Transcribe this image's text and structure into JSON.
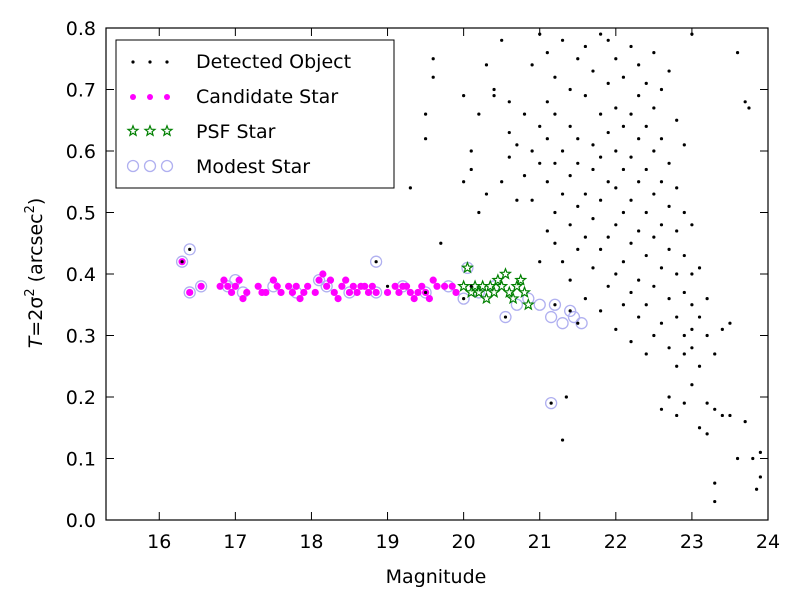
{
  "chart_data": {
    "type": "scatter",
    "xlabel": "Magnitude",
    "ylabel_main": "T",
    "ylabel_eq": "=2σ",
    "ylabel_sup": "2",
    "ylabel_unit": "(arcsec",
    "ylabel_unit_sup": "2",
    "ylabel_close": ")",
    "xlim": [
      15.3,
      24
    ],
    "ylim": [
      0.0,
      0.8
    ],
    "xticks": [
      "16",
      "17",
      "18",
      "19",
      "20",
      "21",
      "22",
      "23",
      "24"
    ],
    "yticks": [
      "0.0",
      "0.1",
      "0.2",
      "0.3",
      "0.4",
      "0.5",
      "0.6",
      "0.7",
      "0.8"
    ],
    "grid": false,
    "legend_position": "top-left",
    "colors": {
      "detected": "#000000",
      "candidate": "#ff00ff",
      "psf": "#008000",
      "modest": "#b0b0f0"
    },
    "series": [
      {
        "name": "Detected Object",
        "marker": "dot",
        "points": [
          [
            16.3,
            0.42
          ],
          [
            16.4,
            0.44
          ],
          [
            18.85,
            0.42
          ],
          [
            19.0,
            0.38
          ],
          [
            19.5,
            0.37
          ],
          [
            20.0,
            0.36
          ],
          [
            20.1,
            0.38
          ],
          [
            20.55,
            0.33
          ],
          [
            21.15,
            0.19
          ],
          [
            21.2,
            0.35
          ],
          [
            21.4,
            0.34
          ],
          [
            21.5,
            0.32
          ],
          [
            19.3,
            0.54
          ],
          [
            19.5,
            0.62
          ],
          [
            19.5,
            0.66
          ],
          [
            19.6,
            0.72
          ],
          [
            19.6,
            0.75
          ],
          [
            19.7,
            0.45
          ],
          [
            20.0,
            0.55
          ],
          [
            20.0,
            0.69
          ],
          [
            20.1,
            0.57
          ],
          [
            20.1,
            0.6
          ],
          [
            20.2,
            0.5
          ],
          [
            20.2,
            0.66
          ],
          [
            20.3,
            0.53
          ],
          [
            20.3,
            0.74
          ],
          [
            20.4,
            0.69
          ],
          [
            20.4,
            0.7
          ],
          [
            20.5,
            0.78
          ],
          [
            20.5,
            0.55
          ],
          [
            20.6,
            0.59
          ],
          [
            20.6,
            0.63
          ],
          [
            20.6,
            0.68
          ],
          [
            20.7,
            0.61
          ],
          [
            20.7,
            0.52
          ],
          [
            20.8,
            0.66
          ],
          [
            20.8,
            0.56
          ],
          [
            20.9,
            0.6
          ],
          [
            20.9,
            0.74
          ],
          [
            20.9,
            0.52
          ],
          [
            21.0,
            0.42
          ],
          [
            21.0,
            0.58
          ],
          [
            21.0,
            0.64
          ],
          [
            21.0,
            0.79
          ],
          [
            21.1,
            0.47
          ],
          [
            21.1,
            0.55
          ],
          [
            21.1,
            0.62
          ],
          [
            21.1,
            0.68
          ],
          [
            21.1,
            0.76
          ],
          [
            21.2,
            0.45
          ],
          [
            21.2,
            0.5
          ],
          [
            21.2,
            0.58
          ],
          [
            21.2,
            0.66
          ],
          [
            21.2,
            0.72
          ],
          [
            21.3,
            0.42
          ],
          [
            21.3,
            0.53
          ],
          [
            21.3,
            0.6
          ],
          [
            21.3,
            0.78
          ],
          [
            21.3,
            0.13
          ],
          [
            21.35,
            0.2
          ],
          [
            21.4,
            0.39
          ],
          [
            21.4,
            0.48
          ],
          [
            21.4,
            0.56
          ],
          [
            21.4,
            0.64
          ],
          [
            21.4,
            0.7
          ],
          [
            21.5,
            0.44
          ],
          [
            21.5,
            0.51
          ],
          [
            21.5,
            0.58
          ],
          [
            21.5,
            0.62
          ],
          [
            21.5,
            0.75
          ],
          [
            21.6,
            0.36
          ],
          [
            21.6,
            0.46
          ],
          [
            21.6,
            0.53
          ],
          [
            21.6,
            0.69
          ],
          [
            21.6,
            0.77
          ],
          [
            21.7,
            0.41
          ],
          [
            21.7,
            0.49
          ],
          [
            21.7,
            0.57
          ],
          [
            21.7,
            0.61
          ],
          [
            21.7,
            0.73
          ],
          [
            21.8,
            0.34
          ],
          [
            21.8,
            0.44
          ],
          [
            21.8,
            0.52
          ],
          [
            21.8,
            0.59
          ],
          [
            21.8,
            0.66
          ],
          [
            21.8,
            0.79
          ],
          [
            21.9,
            0.38
          ],
          [
            21.9,
            0.46
          ],
          [
            21.9,
            0.55
          ],
          [
            21.9,
            0.63
          ],
          [
            21.9,
            0.71
          ],
          [
            21.9,
            0.78
          ],
          [
            22.0,
            0.31
          ],
          [
            22.0,
            0.4
          ],
          [
            22.0,
            0.48
          ],
          [
            22.0,
            0.54
          ],
          [
            22.0,
            0.6
          ],
          [
            22.0,
            0.67
          ],
          [
            22.0,
            0.75
          ],
          [
            22.1,
            0.35
          ],
          [
            22.1,
            0.42
          ],
          [
            22.1,
            0.5
          ],
          [
            22.1,
            0.57
          ],
          [
            22.1,
            0.64
          ],
          [
            22.1,
            0.72
          ],
          [
            22.2,
            0.29
          ],
          [
            22.2,
            0.37
          ],
          [
            22.2,
            0.45
          ],
          [
            22.2,
            0.52
          ],
          [
            22.2,
            0.59
          ],
          [
            22.2,
            0.66
          ],
          [
            22.2,
            0.77
          ],
          [
            22.3,
            0.33
          ],
          [
            22.3,
            0.39
          ],
          [
            22.3,
            0.47
          ],
          [
            22.3,
            0.55
          ],
          [
            22.3,
            0.62
          ],
          [
            22.3,
            0.69
          ],
          [
            22.3,
            0.74
          ],
          [
            22.4,
            0.27
          ],
          [
            22.4,
            0.35
          ],
          [
            22.4,
            0.43
          ],
          [
            22.4,
            0.5
          ],
          [
            22.4,
            0.57
          ],
          [
            22.4,
            0.64
          ],
          [
            22.4,
            0.71
          ],
          [
            22.5,
            0.3
          ],
          [
            22.5,
            0.38
          ],
          [
            22.5,
            0.46
          ],
          [
            22.5,
            0.53
          ],
          [
            22.5,
            0.6
          ],
          [
            22.5,
            0.67
          ],
          [
            22.5,
            0.76
          ],
          [
            22.6,
            0.18
          ],
          [
            22.6,
            0.32
          ],
          [
            22.6,
            0.41
          ],
          [
            22.6,
            0.48
          ],
          [
            22.6,
            0.55
          ],
          [
            22.6,
            0.62
          ],
          [
            22.6,
            0.7
          ],
          [
            22.7,
            0.2
          ],
          [
            22.7,
            0.28
          ],
          [
            22.7,
            0.36
          ],
          [
            22.7,
            0.44
          ],
          [
            22.7,
            0.51
          ],
          [
            22.7,
            0.58
          ],
          [
            22.7,
            0.73
          ],
          [
            22.8,
            0.17
          ],
          [
            22.8,
            0.25
          ],
          [
            22.8,
            0.33
          ],
          [
            22.8,
            0.4
          ],
          [
            22.8,
            0.47
          ],
          [
            22.8,
            0.54
          ],
          [
            22.8,
            0.65
          ],
          [
            22.9,
            0.19
          ],
          [
            22.9,
            0.27
          ],
          [
            22.9,
            0.3
          ],
          [
            22.9,
            0.37
          ],
          [
            22.9,
            0.43
          ],
          [
            22.9,
            0.5
          ],
          [
            22.9,
            0.61
          ],
          [
            23.0,
            0.22
          ],
          [
            23.0,
            0.28
          ],
          [
            23.0,
            0.31
          ],
          [
            23.0,
            0.35
          ],
          [
            23.0,
            0.4
          ],
          [
            23.0,
            0.48
          ],
          [
            23.0,
            0.79
          ],
          [
            23.1,
            0.15
          ],
          [
            23.1,
            0.25
          ],
          [
            23.1,
            0.33
          ],
          [
            23.1,
            0.41
          ],
          [
            23.2,
            0.14
          ],
          [
            23.2,
            0.19
          ],
          [
            23.2,
            0.3
          ],
          [
            23.2,
            0.36
          ],
          [
            23.3,
            0.03
          ],
          [
            23.3,
            0.06
          ],
          [
            23.3,
            0.18
          ],
          [
            23.3,
            0.27
          ],
          [
            23.4,
            0.17
          ],
          [
            23.4,
            0.31
          ],
          [
            23.5,
            0.17
          ],
          [
            23.5,
            0.32
          ],
          [
            23.6,
            0.76
          ],
          [
            23.6,
            0.1
          ],
          [
            23.7,
            0.16
          ],
          [
            23.7,
            0.68
          ],
          [
            23.75,
            0.67
          ],
          [
            23.8,
            0.1
          ],
          [
            23.85,
            0.05
          ],
          [
            23.9,
            0.07
          ],
          [
            23.9,
            0.11
          ]
        ]
      },
      {
        "name": "Candidate Star",
        "marker": "circle-magenta",
        "points": [
          [
            16.3,
            0.42
          ],
          [
            16.4,
            0.37
          ],
          [
            16.55,
            0.38
          ],
          [
            16.8,
            0.38
          ],
          [
            16.85,
            0.39
          ],
          [
            16.9,
            0.38
          ],
          [
            16.95,
            0.37
          ],
          [
            17.0,
            0.38
          ],
          [
            17.05,
            0.39
          ],
          [
            17.1,
            0.36
          ],
          [
            17.15,
            0.37
          ],
          [
            17.3,
            0.38
          ],
          [
            17.35,
            0.37
          ],
          [
            17.4,
            0.37
          ],
          [
            17.5,
            0.39
          ],
          [
            17.55,
            0.38
          ],
          [
            17.6,
            0.37
          ],
          [
            17.7,
            0.38
          ],
          [
            17.75,
            0.37
          ],
          [
            17.8,
            0.38
          ],
          [
            17.85,
            0.36
          ],
          [
            17.9,
            0.37
          ],
          [
            17.95,
            0.38
          ],
          [
            18.05,
            0.37
          ],
          [
            18.1,
            0.39
          ],
          [
            18.15,
            0.4
          ],
          [
            18.2,
            0.38
          ],
          [
            18.25,
            0.39
          ],
          [
            18.3,
            0.37
          ],
          [
            18.35,
            0.36
          ],
          [
            18.4,
            0.38
          ],
          [
            18.45,
            0.39
          ],
          [
            18.5,
            0.37
          ],
          [
            18.55,
            0.38
          ],
          [
            18.6,
            0.37
          ],
          [
            18.65,
            0.38
          ],
          [
            18.7,
            0.38
          ],
          [
            18.75,
            0.37
          ],
          [
            18.8,
            0.38
          ],
          [
            18.85,
            0.37
          ],
          [
            19.0,
            0.37
          ],
          [
            19.1,
            0.38
          ],
          [
            19.15,
            0.37
          ],
          [
            19.2,
            0.38
          ],
          [
            19.25,
            0.38
          ],
          [
            19.3,
            0.37
          ],
          [
            19.35,
            0.36
          ],
          [
            19.4,
            0.37
          ],
          [
            19.45,
            0.38
          ],
          [
            19.5,
            0.37
          ],
          [
            19.55,
            0.36
          ],
          [
            19.6,
            0.39
          ],
          [
            19.65,
            0.38
          ],
          [
            19.75,
            0.38
          ],
          [
            19.85,
            0.38
          ],
          [
            19.9,
            0.37
          ]
        ]
      },
      {
        "name": "PSF Star",
        "marker": "star-green",
        "points": [
          [
            20.0,
            0.38
          ],
          [
            20.05,
            0.41
          ],
          [
            20.1,
            0.37
          ],
          [
            20.15,
            0.38
          ],
          [
            20.2,
            0.37
          ],
          [
            20.25,
            0.38
          ],
          [
            20.3,
            0.36
          ],
          [
            20.35,
            0.38
          ],
          [
            20.4,
            0.37
          ],
          [
            20.45,
            0.39
          ],
          [
            20.5,
            0.38
          ],
          [
            20.55,
            0.4
          ],
          [
            20.6,
            0.37
          ],
          [
            20.65,
            0.36
          ],
          [
            20.7,
            0.38
          ],
          [
            20.75,
            0.39
          ],
          [
            20.8,
            0.37
          ],
          [
            20.85,
            0.35
          ]
        ]
      },
      {
        "name": "Modest Star",
        "marker": "open-circle-lavender",
        "points": [
          [
            16.3,
            0.42
          ],
          [
            16.4,
            0.44
          ],
          [
            16.4,
            0.37
          ],
          [
            16.55,
            0.38
          ],
          [
            16.9,
            0.38
          ],
          [
            17.0,
            0.39
          ],
          [
            17.1,
            0.37
          ],
          [
            17.5,
            0.38
          ],
          [
            17.8,
            0.37
          ],
          [
            18.1,
            0.39
          ],
          [
            18.2,
            0.38
          ],
          [
            18.5,
            0.37
          ],
          [
            18.85,
            0.42
          ],
          [
            18.85,
            0.37
          ],
          [
            19.2,
            0.38
          ],
          [
            19.5,
            0.37
          ],
          [
            19.8,
            0.38
          ],
          [
            20.0,
            0.36
          ],
          [
            20.05,
            0.41
          ],
          [
            20.2,
            0.37
          ],
          [
            20.4,
            0.38
          ],
          [
            20.55,
            0.33
          ],
          [
            20.7,
            0.35
          ],
          [
            20.85,
            0.36
          ],
          [
            21.0,
            0.35
          ],
          [
            21.15,
            0.33
          ],
          [
            21.15,
            0.19
          ],
          [
            21.2,
            0.35
          ],
          [
            21.3,
            0.32
          ],
          [
            21.4,
            0.34
          ],
          [
            21.45,
            0.33
          ],
          [
            21.55,
            0.32
          ]
        ]
      }
    ]
  }
}
